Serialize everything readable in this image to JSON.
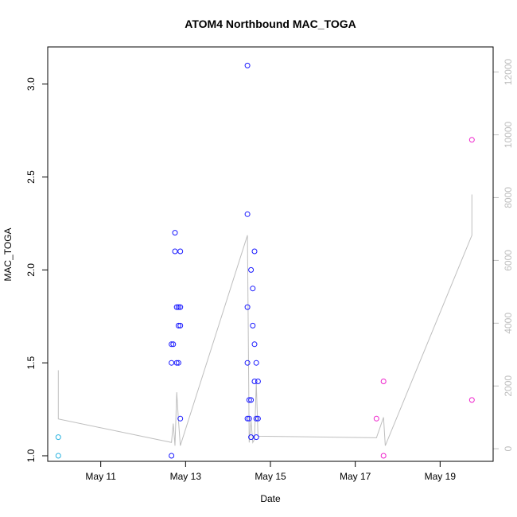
{
  "chart_data": {
    "type": "scatter",
    "title": "ATOM4 Northbound MAC_TOGA",
    "xlabel": "Date",
    "ylabel": "MAC_TOGA",
    "xlim": [
      "2020-05-09T18:00",
      "2020-05-20T06:00"
    ],
    "ylim": [
      0.97,
      3.2
    ],
    "y2lim": [
      -400,
      12800
    ],
    "xticks": [
      {
        "x": "2020-05-11T00:00",
        "label": "May 11"
      },
      {
        "x": "2020-05-13T00:00",
        "label": "May 13"
      },
      {
        "x": "2020-05-15T00:00",
        "label": "May 15"
      },
      {
        "x": "2020-05-17T00:00",
        "label": "May 17"
      },
      {
        "x": "2020-05-19T00:00",
        "label": "May 19"
      }
    ],
    "yticks": [
      1.0,
      1.5,
      2.0,
      2.5,
      3.0
    ],
    "y2ticks": [
      0,
      2000,
      4000,
      6000,
      8000,
      10000,
      12000
    ],
    "colors": {
      "cyan": "#2bb3e0",
      "blue": "#1a1aff",
      "magenta": "#ee22cc",
      "line": "#bebebe",
      "frame": "#000000"
    },
    "series": [
      {
        "color": "cyan",
        "points": [
          {
            "x": "2020-05-10T00:00",
            "y": 1.1
          },
          {
            "x": "2020-05-10T00:00",
            "y": 1.0
          }
        ]
      },
      {
        "color": "blue",
        "points": [
          {
            "x": "2020-05-12T16:00",
            "y": 1.0
          },
          {
            "x": "2020-05-12T16:00",
            "y": 1.5
          },
          {
            "x": "2020-05-12T16:00",
            "y": 1.6
          },
          {
            "x": "2020-05-12T17:00",
            "y": 1.6
          },
          {
            "x": "2020-05-12T18:00",
            "y": 2.2
          },
          {
            "x": "2020-05-12T18:00",
            "y": 2.1
          },
          {
            "x": "2020-05-12T19:00",
            "y": 1.5
          },
          {
            "x": "2020-05-12T20:00",
            "y": 1.5
          },
          {
            "x": "2020-05-12T19:00",
            "y": 1.8
          },
          {
            "x": "2020-05-12T20:00",
            "y": 1.8
          },
          {
            "x": "2020-05-12T21:00",
            "y": 1.8
          },
          {
            "x": "2020-05-12T20:00",
            "y": 1.7
          },
          {
            "x": "2020-05-12T21:00",
            "y": 1.7
          },
          {
            "x": "2020-05-12T21:00",
            "y": 2.1
          },
          {
            "x": "2020-05-12T21:00",
            "y": 1.2
          },
          {
            "x": "2020-05-14T11:00",
            "y": 3.1
          },
          {
            "x": "2020-05-14T11:00",
            "y": 2.3
          },
          {
            "x": "2020-05-14T11:00",
            "y": 1.8
          },
          {
            "x": "2020-05-14T11:00",
            "y": 1.5
          },
          {
            "x": "2020-05-14T11:00",
            "y": 1.2
          },
          {
            "x": "2020-05-14T12:00",
            "y": 1.2
          },
          {
            "x": "2020-05-14T12:00",
            "y": 1.3
          },
          {
            "x": "2020-05-14T13:00",
            "y": 1.3
          },
          {
            "x": "2020-05-14T13:00",
            "y": 2.0
          },
          {
            "x": "2020-05-14T13:00",
            "y": 1.1
          },
          {
            "x": "2020-05-14T14:00",
            "y": 1.9
          },
          {
            "x": "2020-05-14T14:00",
            "y": 1.7
          },
          {
            "x": "2020-05-14T15:00",
            "y": 2.1
          },
          {
            "x": "2020-05-14T15:00",
            "y": 1.6
          },
          {
            "x": "2020-05-14T15:00",
            "y": 1.4
          },
          {
            "x": "2020-05-14T16:00",
            "y": 1.5
          },
          {
            "x": "2020-05-14T16:00",
            "y": 1.2
          },
          {
            "x": "2020-05-14T16:00",
            "y": 1.1
          },
          {
            "x": "2020-05-14T17:00",
            "y": 1.2
          },
          {
            "x": "2020-05-14T17:00",
            "y": 1.4
          }
        ]
      },
      {
        "color": "magenta",
        "points": [
          {
            "x": "2020-05-17T12:00",
            "y": 1.2
          },
          {
            "x": "2020-05-17T16:00",
            "y": 1.4
          },
          {
            "x": "2020-05-17T16:00",
            "y": 1.0
          },
          {
            "x": "2020-05-19T18:00",
            "y": 2.7
          },
          {
            "x": "2020-05-19T18:00",
            "y": 1.3
          }
        ]
      }
    ],
    "secondary_line": {
      "axis": "right",
      "color": "line",
      "points": [
        {
          "x": "2020-05-10T00:00",
          "y": 2500
        },
        {
          "x": "2020-05-10T00:00",
          "y": 950
        },
        {
          "x": "2020-05-12T16:00",
          "y": 200
        },
        {
          "x": "2020-05-12T17:00",
          "y": 800
        },
        {
          "x": "2020-05-12T18:00",
          "y": 100
        },
        {
          "x": "2020-05-12T19:00",
          "y": 1800
        },
        {
          "x": "2020-05-12T20:00",
          "y": 900
        },
        {
          "x": "2020-05-12T21:00",
          "y": 100
        },
        {
          "x": "2020-05-14T11:00",
          "y": 6800
        },
        {
          "x": "2020-05-14T12:00",
          "y": 200
        },
        {
          "x": "2020-05-14T13:00",
          "y": 900
        },
        {
          "x": "2020-05-14T14:00",
          "y": 200
        },
        {
          "x": "2020-05-14T15:00",
          "y": 300
        },
        {
          "x": "2020-05-14T16:00",
          "y": 2100
        },
        {
          "x": "2020-05-14T17:00",
          "y": 400
        },
        {
          "x": "2020-05-17T12:00",
          "y": 350
        },
        {
          "x": "2020-05-17T16:00",
          "y": 1000
        },
        {
          "x": "2020-05-17T17:00",
          "y": 100
        },
        {
          "x": "2020-05-19T18:00",
          "y": 6800
        },
        {
          "x": "2020-05-19T18:00",
          "y": 8100
        }
      ]
    }
  }
}
